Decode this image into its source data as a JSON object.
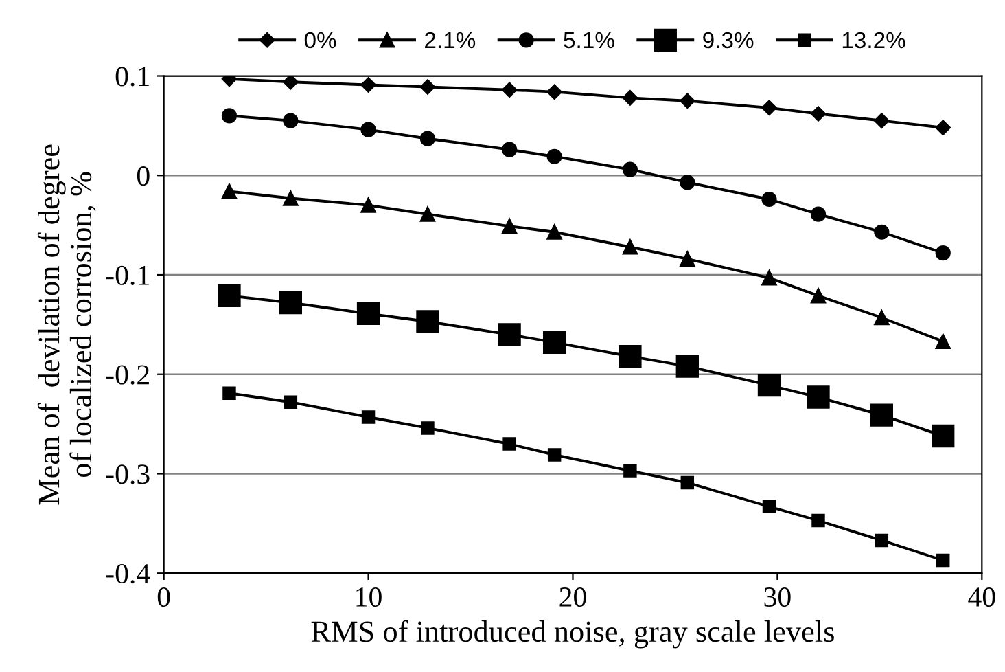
{
  "chart_data": {
    "type": "line",
    "xlabel": "RMS of introduced noise, gray scale levels",
    "ylabel": "Mean of  devilation of degree\nof localized corrosion, %",
    "x": [
      3.2,
      6.2,
      10.0,
      12.9,
      16.9,
      19.1,
      22.8,
      25.6,
      29.6,
      32.0,
      35.1,
      38.1
    ],
    "series": [
      {
        "name": "0%",
        "color": "#000000",
        "marker": "diamond",
        "values": [
          0.097,
          0.094,
          0.091,
          0.089,
          0.086,
          0.084,
          0.078,
          0.075,
          0.068,
          0.062,
          0.055,
          0.048
        ]
      },
      {
        "name": "2.1%",
        "color": "#000000",
        "marker": "triangle",
        "values": [
          -0.016,
          -0.023,
          -0.03,
          -0.039,
          -0.051,
          -0.057,
          -0.072,
          -0.084,
          -0.103,
          -0.121,
          -0.143,
          -0.167
        ]
      },
      {
        "name": "5.1%",
        "color": "#000000",
        "marker": "circle",
        "values": [
          0.06,
          0.055,
          0.046,
          0.037,
          0.026,
          0.019,
          0.006,
          -0.007,
          -0.024,
          -0.039,
          -0.057,
          -0.078
        ]
      },
      {
        "name": "9.3%",
        "color": "#000000",
        "marker": "square",
        "values": [
          -0.121,
          -0.128,
          -0.139,
          -0.147,
          -0.16,
          -0.168,
          -0.182,
          -0.192,
          -0.211,
          -0.223,
          -0.241,
          -0.262
        ]
      },
      {
        "name": "13.2%",
        "color": "#000000",
        "marker": "square",
        "values": [
          -0.219,
          -0.228,
          -0.243,
          -0.254,
          -0.27,
          -0.281,
          -0.297,
          -0.309,
          -0.333,
          -0.347,
          -0.367,
          -0.387
        ]
      }
    ],
    "xlim": [
      0,
      40
    ],
    "xticks": [
      0,
      10,
      20,
      30,
      40
    ],
    "ylim": [
      -0.4,
      0.1
    ],
    "yticks": [
      -0.4,
      -0.3,
      -0.2,
      -0.1,
      0,
      0.1
    ],
    "grid": "y",
    "legend": "top",
    "line_style": "solid"
  }
}
